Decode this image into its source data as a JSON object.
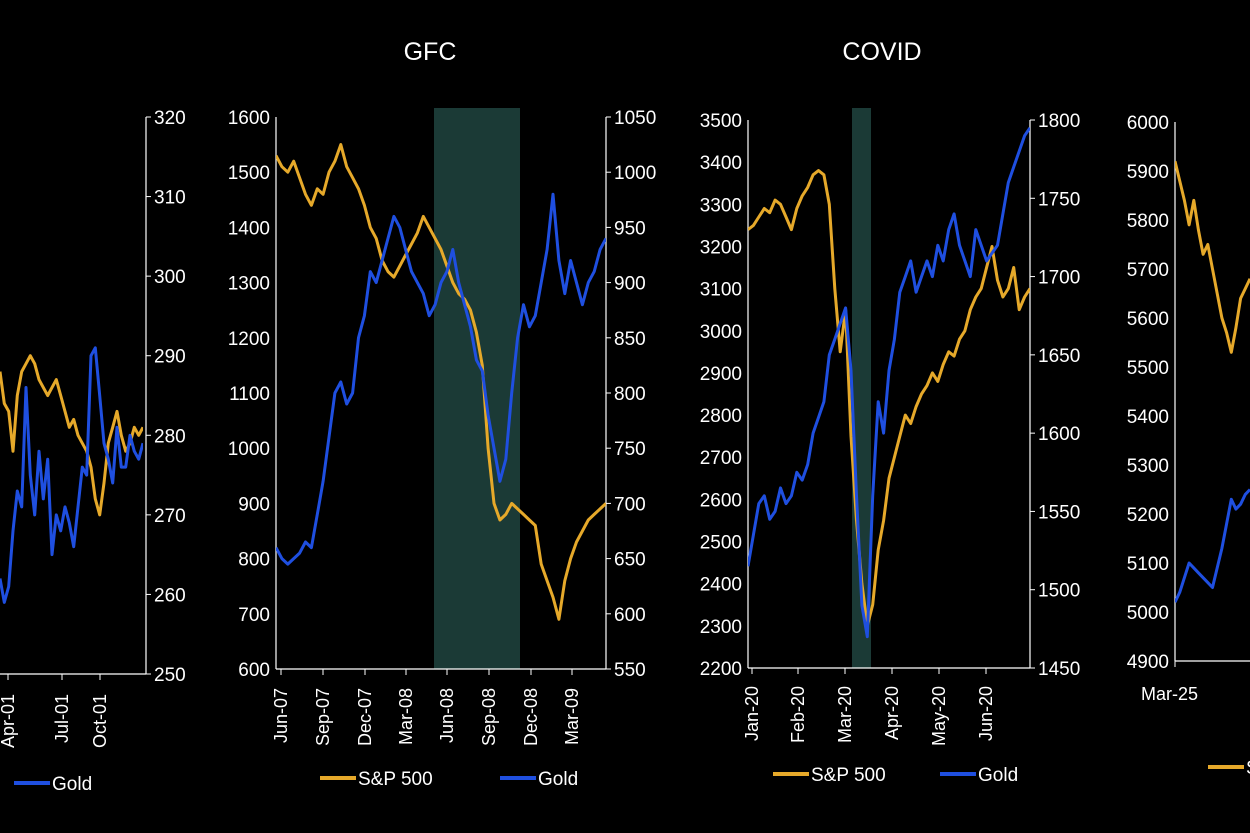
{
  "colors": {
    "background": "#000000",
    "sp500": "#e6a92a",
    "gold": "#1f4fe0",
    "shade": "#1b3a36",
    "axis": "#ffffff"
  },
  "chart_data": [
    {
      "type": "line",
      "title": "",
      "left_axis": {
        "ticks": []
      },
      "right_axis": {
        "ylim": [
          250,
          320
        ],
        "ticks": [
          "320",
          "310",
          "300",
          "290",
          "280",
          "270",
          "260",
          "250"
        ]
      },
      "x_ticks": [
        "Apr-01",
        "Jul-01",
        "Oct-01"
      ],
      "legend": {
        "placement": "bottom",
        "entries": [
          "Gold"
        ]
      },
      "series": [
        {
          "name": "S&P 500",
          "axis": "right",
          "values": [
            288,
            284,
            283,
            278,
            285,
            288,
            289,
            290,
            289,
            287,
            286,
            285,
            286,
            287,
            285,
            283,
            281,
            282,
            280,
            279,
            278,
            276,
            272,
            270,
            274,
            279,
            281,
            283,
            280,
            278,
            279,
            281,
            280,
            281
          ]
        },
        {
          "name": "Gold",
          "axis": "right",
          "values": [
            262,
            259,
            261,
            268,
            273,
            271,
            286,
            275,
            270,
            278,
            272,
            277,
            265,
            270,
            268,
            271,
            269,
            266,
            271,
            276,
            275,
            290,
            291,
            285,
            279,
            277,
            274,
            281,
            276,
            276,
            280,
            278,
            277,
            279
          ]
        }
      ]
    },
    {
      "type": "line",
      "title": "GFC",
      "left_axis": {
        "ylim": [
          600,
          1600
        ],
        "ticks": [
          "1600",
          "1500",
          "1400",
          "1300",
          "1200",
          "1100",
          "1000",
          "900",
          "800",
          "700",
          "600"
        ]
      },
      "right_axis": {
        "ylim": [
          550,
          1050
        ],
        "ticks": [
          "1050",
          "1000",
          "950",
          "900",
          "850",
          "800",
          "750",
          "700",
          "650",
          "600",
          "550"
        ]
      },
      "x_ticks": [
        "Jun-07",
        "Sep-07",
        "Dec-07",
        "Mar-08",
        "Jun-08",
        "Sep-08",
        "Dec-08",
        "Mar-09"
      ],
      "shaded_range": [
        "May-08",
        "Nov-08"
      ],
      "legend": {
        "placement": "bottom",
        "entries": [
          "S&P 500",
          "Gold"
        ]
      },
      "series": [
        {
          "name": "S&P 500",
          "axis": "left",
          "values": [
            1530,
            1510,
            1500,
            1520,
            1490,
            1460,
            1440,
            1470,
            1460,
            1500,
            1520,
            1550,
            1510,
            1490,
            1470,
            1440,
            1400,
            1380,
            1340,
            1320,
            1310,
            1330,
            1350,
            1370,
            1390,
            1420,
            1400,
            1380,
            1360,
            1330,
            1300,
            1280,
            1270,
            1250,
            1210,
            1150,
            1000,
            900,
            870,
            880,
            900,
            890,
            880,
            870,
            860,
            790,
            760,
            730,
            690,
            760,
            800,
            830,
            850,
            870,
            880,
            890,
            900
          ]
        },
        {
          "name": "Gold",
          "axis": "right",
          "values": [
            660,
            650,
            645,
            650,
            655,
            665,
            660,
            690,
            720,
            760,
            800,
            810,
            790,
            800,
            850,
            870,
            910,
            900,
            920,
            940,
            960,
            950,
            930,
            910,
            900,
            890,
            870,
            880,
            900,
            910,
            930,
            900,
            880,
            860,
            830,
            820,
            780,
            750,
            720,
            740,
            800,
            850,
            880,
            860,
            870,
            900,
            930,
            980,
            920,
            890,
            920,
            900,
            880,
            900,
            910,
            930,
            940
          ]
        }
      ]
    },
    {
      "type": "line",
      "title": "COVID",
      "left_axis": {
        "ylim": [
          2200,
          3500
        ],
        "ticks": [
          "3500",
          "3400",
          "3300",
          "3200",
          "3100",
          "3000",
          "2900",
          "2800",
          "2700",
          "2600",
          "2500",
          "2400",
          "2300",
          "2200"
        ]
      },
      "right_axis": {
        "ylim": [
          1450,
          1800
        ],
        "ticks": [
          "1800",
          "1750",
          "1700",
          "1650",
          "1600",
          "1550",
          "1500",
          "1450"
        ]
      },
      "x_ticks": [
        "Jan-20",
        "Feb-20",
        "Mar-20",
        "Apr-20",
        "May-20",
        "Jun-20"
      ],
      "shaded_range": [
        "Mar-20",
        "Mar-20"
      ],
      "legend": {
        "placement": "bottom",
        "entries": [
          "S&P 500",
          "Gold"
        ]
      },
      "series": [
        {
          "name": "S&P 500",
          "axis": "left",
          "values": [
            3240,
            3250,
            3270,
            3290,
            3280,
            3310,
            3300,
            3270,
            3240,
            3290,
            3320,
            3340,
            3370,
            3380,
            3370,
            3300,
            3100,
            2950,
            3050,
            2750,
            2550,
            2400,
            2300,
            2350,
            2480,
            2550,
            2650,
            2700,
            2750,
            2800,
            2780,
            2820,
            2850,
            2870,
            2900,
            2880,
            2920,
            2950,
            2940,
            2980,
            3000,
            3050,
            3080,
            3100,
            3150,
            3200,
            3120,
            3080,
            3100,
            3150,
            3050,
            3080,
            3100
          ]
        },
        {
          "name": "Gold",
          "axis": "right",
          "values": [
            1515,
            1535,
            1555,
            1560,
            1545,
            1550,
            1565,
            1555,
            1560,
            1575,
            1570,
            1580,
            1600,
            1610,
            1620,
            1650,
            1660,
            1670,
            1680,
            1640,
            1560,
            1490,
            1470,
            1560,
            1620,
            1600,
            1640,
            1660,
            1690,
            1700,
            1710,
            1690,
            1700,
            1710,
            1700,
            1720,
            1710,
            1730,
            1740,
            1720,
            1710,
            1700,
            1730,
            1720,
            1710,
            1715,
            1720,
            1740,
            1760,
            1770,
            1780,
            1790,
            1795
          ]
        }
      ]
    },
    {
      "type": "line",
      "title": "",
      "left_axis": {
        "ylim": [
          4900,
          6000
        ],
        "ticks": [
          "6000",
          "5900",
          "5800",
          "5700",
          "5600",
          "5500",
          "5400",
          "5300",
          "5200",
          "5100",
          "5000",
          "4900"
        ]
      },
      "right_axis": {
        "ticks": []
      },
      "x_ticks": [
        "Mar-25"
      ],
      "legend": {
        "placement": "bottom",
        "entries": [
          "S"
        ]
      },
      "series": [
        {
          "name": "S&P 500",
          "axis": "left",
          "values": [
            5920,
            5880,
            5840,
            5790,
            5840,
            5780,
            5730,
            5750,
            5700,
            5650,
            5600,
            5570,
            5530,
            5580,
            5640,
            5660,
            5680
          ]
        },
        {
          "name": "Gold",
          "axis": "left",
          "values": [
            5020,
            5040,
            5070,
            5100,
            5090,
            5080,
            5070,
            5060,
            5050,
            5090,
            5130,
            5180,
            5230,
            5210,
            5220,
            5240,
            5250
          ]
        }
      ]
    }
  ]
}
